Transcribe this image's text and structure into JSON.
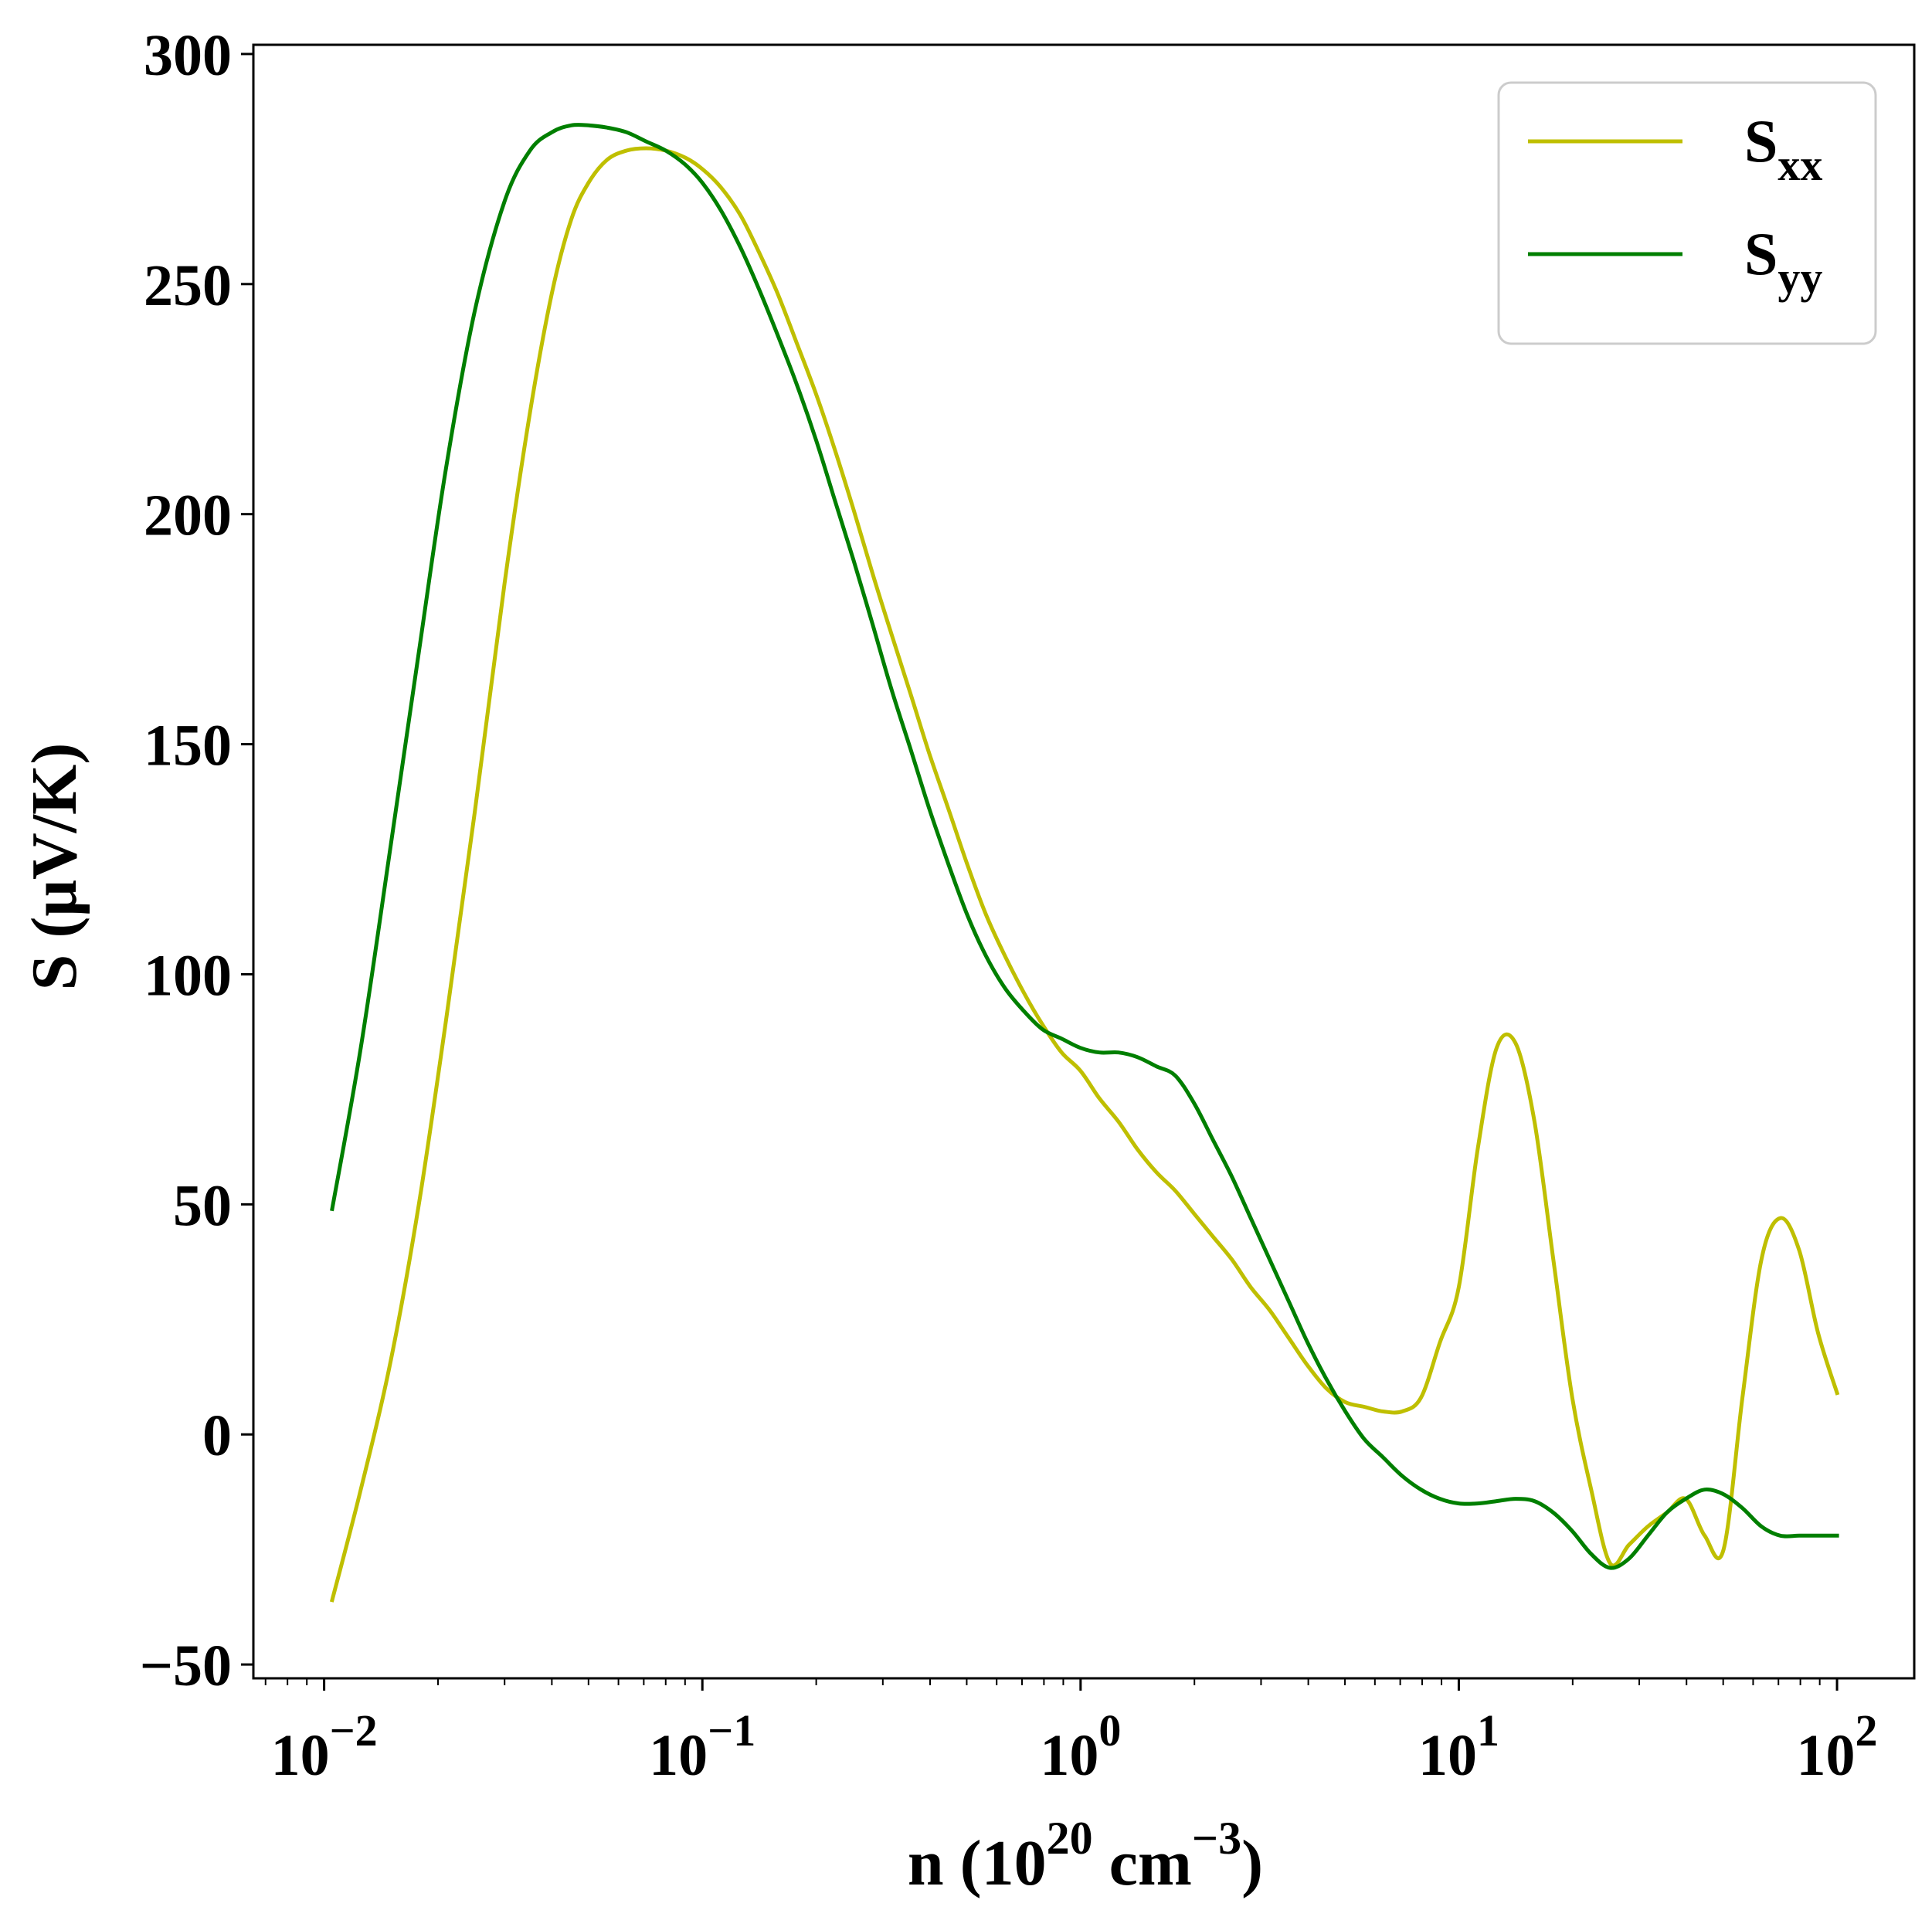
{
  "chart_data": {
    "type": "line",
    "title": "",
    "xlabel": {
      "main": "n (10",
      "sup1": "20",
      "mid": " cm",
      "sup2": "−3",
      "end": ")"
    },
    "ylabel": "S (μV/K)",
    "x_scale": "log",
    "xlim": [
      0.0065,
      160
    ],
    "ylim": [
      -53,
      302
    ],
    "x_ticks": [
      {
        "value": 0.01,
        "base": "10",
        "exp": "−2"
      },
      {
        "value": 0.1,
        "base": "10",
        "exp": "−1"
      },
      {
        "value": 1,
        "base": "10",
        "exp": "0"
      },
      {
        "value": 10,
        "base": "10",
        "exp": "1"
      },
      {
        "value": 100,
        "base": "10",
        "exp": "2"
      }
    ],
    "y_ticks": [
      {
        "value": -50,
        "label": "−50"
      },
      {
        "value": 0,
        "label": "0"
      },
      {
        "value": 50,
        "label": "50"
      },
      {
        "value": 100,
        "label": "100"
      },
      {
        "value": 150,
        "label": "150"
      },
      {
        "value": 200,
        "label": "200"
      },
      {
        "value": 250,
        "label": "250"
      },
      {
        "value": 300,
        "label": "300"
      }
    ],
    "grid": false,
    "legend_position": "top-right",
    "series": [
      {
        "name": "S",
        "subscript": "xx",
        "color": "#bfbf00",
        "x": [
          0.0105,
          0.0125,
          0.015,
          0.0178,
          0.021,
          0.025,
          0.03,
          0.035,
          0.04,
          0.045,
          0.05,
          0.056,
          0.063,
          0.071,
          0.08,
          0.09,
          0.1,
          0.112,
          0.126,
          0.141,
          0.158,
          0.178,
          0.2,
          0.224,
          0.251,
          0.282,
          0.316,
          0.355,
          0.398,
          0.447,
          0.501,
          0.562,
          0.631,
          0.708,
          0.794,
          0.891,
          1.0,
          1.122,
          1.259,
          1.413,
          1.585,
          1.778,
          1.995,
          2.239,
          2.512,
          2.818,
          3.162,
          3.548,
          3.981,
          4.467,
          5.012,
          5.623,
          6.31,
          7.079,
          7.943,
          8.913,
          10.0,
          11.22,
          12.59,
          14.13,
          15.85,
          17.78,
          19.95,
          22.39,
          25.12,
          28.18,
          31.62,
          35.48,
          39.81,
          44.67,
          50.12,
          56.23,
          63.1,
          70.79,
          79.43,
          89.13,
          100.0
        ],
        "y": [
          -36,
          -12,
          16,
          50,
          90,
          135,
          185,
          222,
          248,
          264,
          272,
          277,
          279,
          279.5,
          279,
          277.5,
          275,
          271,
          265,
          257,
          248,
          237,
          226,
          214,
          201,
          187,
          174,
          161,
          148,
          136,
          124,
          113,
          104,
          96,
          89,
          83,
          79,
          73,
          68,
          62,
          57,
          53,
          48,
          43,
          38,
          32,
          27,
          21,
          15,
          10,
          7,
          6,
          5,
          5,
          8,
          20,
          32,
          62,
          84,
          85,
          68,
          38,
          8,
          -12,
          -28,
          -24,
          -20,
          -17,
          -14,
          -22,
          -25,
          8,
          38,
          47,
          40,
          22,
          9
        ]
      },
      {
        "name": "S",
        "subscript": "yy",
        "color": "#007f00",
        "x": [
          0.0105,
          0.0125,
          0.015,
          0.0178,
          0.021,
          0.025,
          0.03,
          0.035,
          0.04,
          0.045,
          0.05,
          0.056,
          0.063,
          0.071,
          0.08,
          0.09,
          0.1,
          0.112,
          0.126,
          0.141,
          0.158,
          0.178,
          0.2,
          0.224,
          0.251,
          0.282,
          0.316,
          0.355,
          0.398,
          0.447,
          0.501,
          0.562,
          0.631,
          0.708,
          0.794,
          0.891,
          1.0,
          1.122,
          1.259,
          1.413,
          1.585,
          1.778,
          1.995,
          2.239,
          2.512,
          2.818,
          3.162,
          3.548,
          3.981,
          4.467,
          5.012,
          5.623,
          6.31,
          7.079,
          7.943,
          8.913,
          10.0,
          11.22,
          12.59,
          14.13,
          15.85,
          17.78,
          19.95,
          22.39,
          25.12,
          28.18,
          31.62,
          35.48,
          39.81,
          44.67,
          50.12,
          56.23,
          63.1,
          70.79,
          79.43,
          89.13,
          100.0
        ],
        "y": [
          49,
          84,
          128,
          170,
          210,
          244,
          268,
          279,
          283,
          284.5,
          284.5,
          284,
          283,
          281,
          279,
          276,
          272,
          266,
          258,
          249,
          239,
          228,
          216,
          203,
          190,
          176,
          162,
          149,
          136,
          124,
          113,
          104,
          97,
          92,
          88,
          86,
          84,
          83,
          83,
          82,
          80,
          78,
          72,
          64,
          56,
          47,
          38,
          29,
          20,
          12,
          5,
          -1,
          -5,
          -9,
          -12,
          -14,
          -15,
          -15,
          -14.5,
          -14,
          -14.5,
          -17,
          -21,
          -26,
          -29,
          -27,
          -22,
          -17,
          -14,
          -12,
          -13,
          -16,
          -20,
          -22,
          -22,
          -22,
          -22
        ]
      }
    ]
  }
}
